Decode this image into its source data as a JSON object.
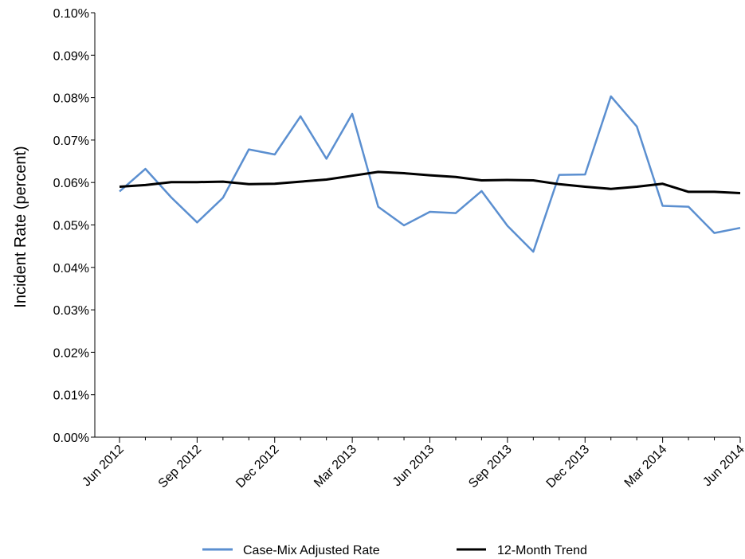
{
  "chart_data": {
    "type": "line",
    "title": "",
    "xlabel": "",
    "ylabel": "Incident Rate (percent)",
    "ylim": [
      0,
      0.1
    ],
    "y_ticks": [
      "0.00%",
      "0.01%",
      "0.02%",
      "0.03%",
      "0.04%",
      "0.05%",
      "0.06%",
      "0.07%",
      "0.08%",
      "0.09%",
      "0.10%"
    ],
    "x": [
      "Jun 2012",
      "Jul 2012",
      "Aug 2012",
      "Sep 2012",
      "Oct 2012",
      "Nov 2012",
      "Dec 2012",
      "Jan 2013",
      "Feb 2013",
      "Mar 2013",
      "Apr 2013",
      "May 2013",
      "Jun 2013",
      "Jul 2013",
      "Aug 2013",
      "Sep 2013",
      "Oct 2013",
      "Nov 2013",
      "Dec 2013",
      "Jan 2014",
      "Feb 2014",
      "Mar 2014",
      "Apr 2014",
      "May 2014",
      "Jun 2014"
    ],
    "x_tick_labels": [
      "Jun 2012",
      "Sep 2012",
      "Dec 2012",
      "Mar 2013",
      "Jun 2013",
      "Sep 2013",
      "Dec 2013",
      "Mar 2014",
      "Jun 2014"
    ],
    "grid": false,
    "legend_position": "bottom",
    "series": [
      {
        "name": "Case-Mix Adjusted Rate",
        "color": "#5B8FD0",
        "values": [
          0.0579,
          0.0632,
          0.0565,
          0.0506,
          0.0564,
          0.0678,
          0.0666,
          0.0756,
          0.0656,
          0.0762,
          0.0543,
          0.0499,
          0.0531,
          0.0528,
          0.058,
          0.0498,
          0.0437,
          0.0618,
          0.0619,
          0.0803,
          0.0732,
          0.0545,
          0.0543,
          0.0481,
          0.0493
        ]
      },
      {
        "name": "12-Month Trend",
        "color": "#000000",
        "values": [
          0.059,
          0.0594,
          0.0601,
          0.0601,
          0.0602,
          0.0596,
          0.0597,
          0.0602,
          0.0607,
          0.0616,
          0.0625,
          0.0622,
          0.0617,
          0.0613,
          0.0605,
          0.0606,
          0.0605,
          0.0596,
          0.059,
          0.0585,
          0.059,
          0.0597,
          0.0578,
          0.0578,
          0.0575
        ]
      }
    ]
  }
}
